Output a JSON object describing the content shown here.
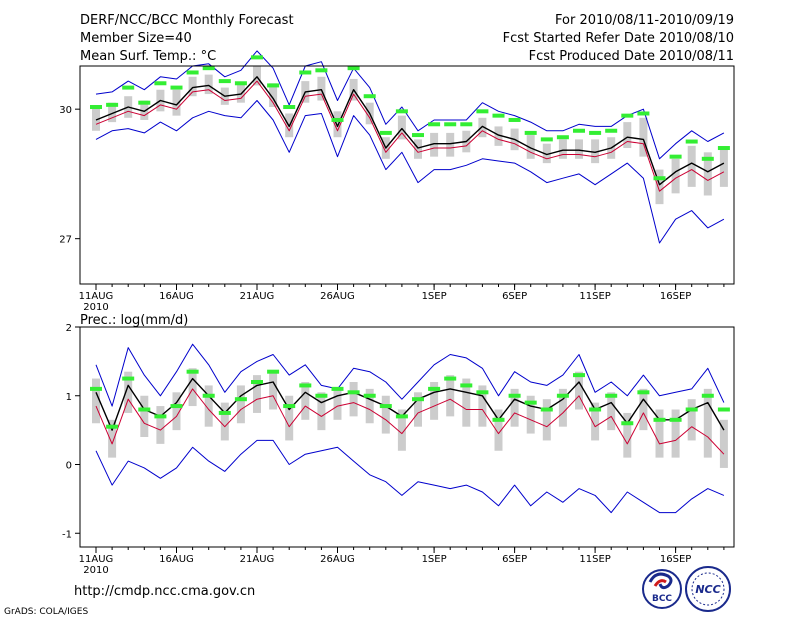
{
  "header": {
    "title": "DERF/NCC/BCC Monthly Forecast",
    "member_size": "Member Size=40",
    "variable": "Mean Surf. Temp.: °C",
    "period": "For 2010/08/11-2010/09/19",
    "refer_date": "Fcst Started Refer Date 2010/08/10",
    "produced_date": "Fcst Produced Date 2010/08/11"
  },
  "footer": {
    "url": "http://cmdp.ncc.cma.gov.cn",
    "grads": "GrADS: COLA/IGES",
    "logo_bcc": "BCC",
    "logo_ncc": "NCC"
  },
  "colors": {
    "envelope": "#0000cc",
    "mean": "#000000",
    "median": "#cc0033",
    "box": "#cccccc",
    "obs": "#33ee33"
  },
  "chart_data": [
    {
      "type": "line",
      "title": "Mean Surf. Temp.: °C",
      "x_labels": [
        "11AUG",
        "16AUG",
        "21AUG",
        "26AUG",
        "1SEP",
        "6SEP",
        "11SEP",
        "16SEP"
      ],
      "x_sub_label": "2010",
      "x_label_days": [
        1,
        6,
        11,
        16,
        22,
        27,
        32,
        37
      ],
      "days": 40,
      "ylim": [
        25.95,
        31.0
      ],
      "yticks": [
        27,
        30
      ],
      "series": [
        {
          "name": "max",
          "values": [
            30.35,
            30.4,
            30.65,
            30.45,
            30.75,
            30.7,
            31.0,
            31.05,
            30.75,
            30.9,
            31.35,
            30.95,
            30.1,
            31.0,
            31.1,
            30.2,
            30.95,
            30.5,
            29.65,
            30.05,
            29.5,
            29.75,
            29.75,
            29.75,
            30.15,
            29.95,
            29.85,
            29.7,
            29.5,
            29.5,
            29.65,
            29.6,
            29.6,
            29.85,
            30.0,
            28.85,
            29.2,
            29.5,
            29.25,
            29.45
          ]
        },
        {
          "name": "q75",
          "values": [
            30.05,
            30.15,
            30.3,
            30.2,
            30.45,
            30.45,
            30.75,
            30.8,
            30.5,
            30.6,
            31.0,
            30.6,
            29.9,
            30.65,
            30.75,
            29.95,
            30.7,
            30.15,
            29.35,
            29.85,
            29.3,
            29.45,
            29.45,
            29.5,
            29.8,
            29.6,
            29.55,
            29.4,
            29.2,
            29.3,
            29.3,
            29.3,
            29.35,
            29.7,
            29.8,
            28.6,
            28.85,
            29.15,
            29.0,
            29.1
          ]
        },
        {
          "name": "mean",
          "values": [
            29.75,
            29.9,
            30.05,
            29.95,
            30.2,
            30.1,
            30.5,
            30.55,
            30.3,
            30.35,
            30.75,
            30.25,
            29.6,
            30.4,
            30.45,
            29.6,
            30.45,
            29.9,
            29.1,
            29.55,
            29.1,
            29.2,
            29.2,
            29.25,
            29.6,
            29.4,
            29.3,
            29.1,
            28.95,
            29.05,
            29.05,
            29.0,
            29.1,
            29.35,
            29.3,
            28.25,
            28.55,
            28.75,
            28.55,
            28.75
          ]
        },
        {
          "name": "median",
          "values": [
            29.65,
            29.8,
            29.95,
            29.85,
            30.1,
            30.0,
            30.4,
            30.45,
            30.2,
            30.25,
            30.65,
            30.15,
            29.5,
            30.3,
            30.35,
            29.5,
            30.35,
            29.8,
            29.0,
            29.45,
            29.0,
            29.1,
            29.1,
            29.15,
            29.5,
            29.3,
            29.2,
            29.0,
            28.85,
            28.95,
            28.95,
            28.9,
            29.0,
            29.25,
            29.2,
            28.1,
            28.4,
            28.6,
            28.35,
            28.55
          ]
        },
        {
          "name": "q25",
          "values": [
            29.5,
            29.7,
            29.8,
            29.75,
            29.95,
            29.85,
            30.3,
            30.35,
            30.1,
            30.15,
            30.55,
            30.05,
            29.35,
            30.15,
            30.2,
            29.35,
            30.2,
            29.65,
            28.85,
            29.3,
            28.85,
            28.9,
            28.9,
            29.0,
            29.35,
            29.15,
            29.05,
            28.85,
            28.75,
            28.85,
            28.85,
            28.75,
            28.85,
            29.1,
            28.9,
            27.8,
            28.05,
            28.2,
            28.0,
            28.2
          ]
        },
        {
          "name": "min",
          "values": [
            29.3,
            29.5,
            29.55,
            29.45,
            29.7,
            29.5,
            29.8,
            29.95,
            29.85,
            29.8,
            30.2,
            29.75,
            29.0,
            29.85,
            29.9,
            28.9,
            29.85,
            29.4,
            28.6,
            29.0,
            28.3,
            28.6,
            28.6,
            28.7,
            28.85,
            28.8,
            28.75,
            28.55,
            28.3,
            28.4,
            28.5,
            28.25,
            28.5,
            28.75,
            28.4,
            26.9,
            27.45,
            27.65,
            27.25,
            27.45
          ]
        },
        {
          "name": "obs",
          "values": [
            30.05,
            30.1,
            30.5,
            30.15,
            30.6,
            30.5,
            30.85,
            30.95,
            30.65,
            30.6,
            31.2,
            30.55,
            30.05,
            30.85,
            30.9,
            29.75,
            30.95,
            30.3,
            29.45,
            29.95,
            29.4,
            29.65,
            29.65,
            29.65,
            29.95,
            29.85,
            29.75,
            29.45,
            29.3,
            29.35,
            29.5,
            29.45,
            29.5,
            29.85,
            29.9,
            28.4,
            28.9,
            29.25,
            28.85,
            29.1
          ]
        }
      ]
    },
    {
      "type": "line",
      "title": "Prec.: log(mm/d)",
      "x_labels": [
        "11AUG",
        "16AUG",
        "21AUG",
        "26AUG",
        "1SEP",
        "6SEP",
        "11SEP",
        "16SEP"
      ],
      "x_sub_label": "2010",
      "x_label_days": [
        1,
        6,
        11,
        16,
        22,
        27,
        32,
        37
      ],
      "days": 40,
      "ylim": [
        -1.2,
        2.0
      ],
      "yticks": [
        -1,
        0,
        1,
        2
      ],
      "series": [
        {
          "name": "max",
          "values": [
            1.45,
            0.85,
            1.7,
            1.3,
            1.0,
            1.35,
            1.75,
            1.45,
            1.05,
            1.35,
            1.5,
            1.6,
            1.3,
            1.45,
            1.15,
            1.1,
            1.4,
            1.35,
            1.2,
            0.95,
            1.2,
            1.45,
            1.6,
            1.55,
            1.4,
            1.0,
            1.35,
            1.2,
            1.15,
            1.3,
            1.6,
            1.05,
            1.2,
            1.0,
            1.3,
            1.0,
            1.05,
            1.1,
            1.4,
            0.9
          ]
        },
        {
          "name": "q75",
          "values": [
            1.25,
            0.65,
            1.35,
            1.0,
            0.85,
            1.05,
            1.4,
            1.15,
            0.9,
            1.15,
            1.3,
            1.35,
            1.0,
            1.2,
            1.05,
            1.1,
            1.2,
            1.1,
            1.0,
            0.8,
            1.05,
            1.2,
            1.3,
            1.25,
            1.15,
            0.8,
            1.1,
            1.0,
            0.95,
            1.1,
            1.35,
            0.9,
            1.05,
            0.75,
            1.1,
            0.8,
            0.8,
            0.95,
            1.1,
            0.65
          ]
        },
        {
          "name": "mean",
          "values": [
            1.05,
            0.5,
            1.15,
            0.8,
            0.7,
            0.9,
            1.25,
            1.0,
            0.75,
            1.0,
            1.15,
            1.2,
            0.8,
            1.05,
            0.9,
            1.0,
            1.05,
            0.95,
            0.85,
            0.7,
            0.95,
            1.05,
            1.1,
            1.05,
            1.0,
            0.65,
            0.95,
            0.85,
            0.8,
            0.95,
            1.2,
            0.8,
            0.9,
            0.6,
            0.95,
            0.65,
            0.65,
            0.8,
            0.9,
            0.5
          ]
        },
        {
          "name": "median",
          "values": [
            0.85,
            0.3,
            0.95,
            0.6,
            0.5,
            0.7,
            1.1,
            0.8,
            0.55,
            0.8,
            0.95,
            1.0,
            0.55,
            0.85,
            0.7,
            0.85,
            0.9,
            0.8,
            0.65,
            0.45,
            0.75,
            0.85,
            0.95,
            0.8,
            0.8,
            0.45,
            0.75,
            0.65,
            0.55,
            0.75,
            1.0,
            0.55,
            0.7,
            0.3,
            0.75,
            0.3,
            0.35,
            0.55,
            0.4,
            0.15
          ]
        },
        {
          "name": "q25",
          "values": [
            0.6,
            0.1,
            0.75,
            0.4,
            0.3,
            0.5,
            0.85,
            0.55,
            0.35,
            0.6,
            0.75,
            0.8,
            0.35,
            0.65,
            0.5,
            0.65,
            0.7,
            0.6,
            0.45,
            0.2,
            0.55,
            0.65,
            0.7,
            0.55,
            0.55,
            0.2,
            0.55,
            0.45,
            0.35,
            0.55,
            0.8,
            0.35,
            0.5,
            0.1,
            0.5,
            0.1,
            0.1,
            0.35,
            0.1,
            -0.05
          ]
        },
        {
          "name": "min",
          "values": [
            0.2,
            -0.3,
            0.05,
            -0.05,
            -0.2,
            -0.05,
            0.25,
            0.05,
            -0.1,
            0.15,
            0.35,
            0.35,
            0.0,
            0.15,
            0.2,
            0.25,
            0.05,
            -0.15,
            -0.25,
            -0.45,
            -0.25,
            -0.3,
            -0.35,
            -0.3,
            -0.4,
            -0.6,
            -0.3,
            -0.6,
            -0.4,
            -0.55,
            -0.35,
            -0.45,
            -0.7,
            -0.4,
            -0.55,
            -0.7,
            -0.7,
            -0.5,
            -0.35,
            -0.45
          ]
        },
        {
          "name": "obs",
          "values": [
            1.1,
            0.55,
            1.25,
            0.8,
            0.7,
            0.85,
            1.35,
            1.0,
            0.75,
            0.95,
            1.2,
            1.35,
            0.85,
            1.15,
            1.0,
            1.1,
            1.05,
            1.0,
            0.85,
            0.7,
            0.95,
            1.1,
            1.25,
            1.15,
            1.05,
            0.65,
            1.0,
            0.9,
            0.8,
            1.0,
            1.3,
            0.8,
            1.0,
            0.6,
            1.05,
            0.65,
            0.65,
            0.8,
            1.0,
            0.8
          ]
        }
      ]
    }
  ]
}
